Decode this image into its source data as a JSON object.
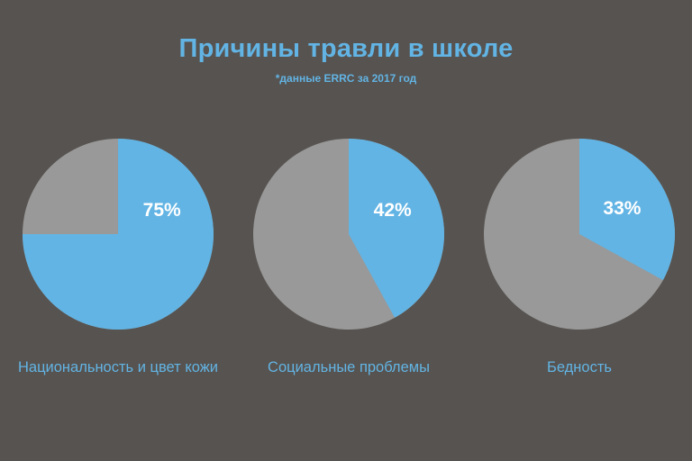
{
  "title": "Причины травли в школе",
  "subtitle": "*данные ERRC за 2017 год",
  "colors": {
    "background": "#575350",
    "accent": "#62b4e4",
    "remainder": "#999999",
    "value_text": "#ffffff"
  },
  "chart_data": [
    {
      "type": "pie",
      "label": "Национальность и цвет кожи",
      "value": 75,
      "value_label": "75%"
    },
    {
      "type": "pie",
      "label": "Социальные проблемы",
      "value": 42,
      "value_label": "42%"
    },
    {
      "type": "pie",
      "label": "Бедность",
      "value": 33,
      "value_label": "33%"
    }
  ]
}
